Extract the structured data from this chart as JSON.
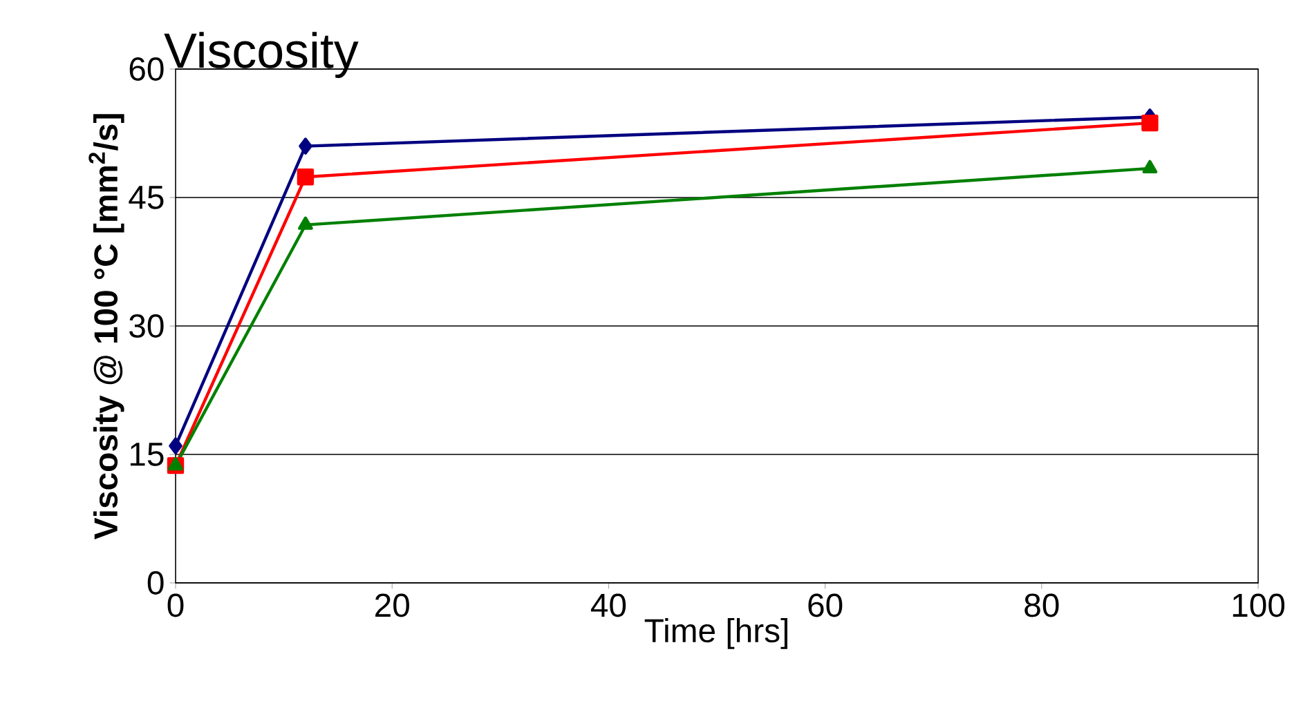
{
  "chart_data": {
    "type": "line",
    "title": "Viscosity",
    "xlabel": "Time [hrs]",
    "ylabel": "**Viscosity @ 100 °C [mm$^{2}$/s]**",
    "x": [
      0,
      12,
      90
    ],
    "series": [
      {
        "color": "#000080",
        "marker": "diamond",
        "values": [
          16.0,
          51.0,
          54.4
        ]
      },
      {
        "color": "#ff0000",
        "marker": "square",
        "values": [
          13.7,
          47.4,
          53.7
        ]
      },
      {
        "color": "#008000",
        "marker": "triangle",
        "values": [
          13.7,
          41.8,
          48.4
        ]
      }
    ],
    "xlim": [
      0,
      100
    ],
    "ylim": [
      0,
      60
    ],
    "xticks": [
      0,
      20,
      40,
      60,
      80,
      100
    ],
    "yticks": [
      0,
      15,
      30,
      45,
      60
    ],
    "grid": "y",
    "line_style": "solid"
  }
}
